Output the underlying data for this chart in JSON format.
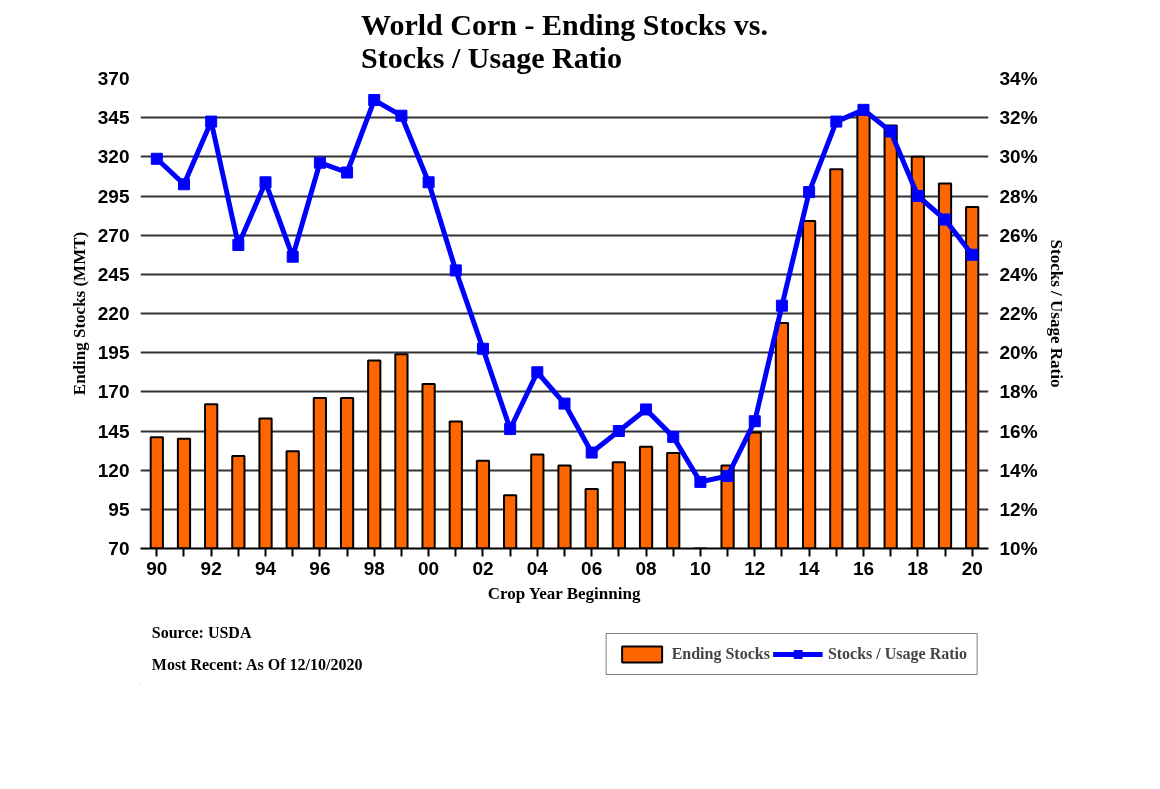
{
  "chart_data": {
    "type": "bar",
    "title": "World Corn - Ending Stocks vs. Stocks / Usage Ratio",
    "xlabel": "Crop Year Beginning",
    "ylabel": "Ending Stocks (MMT)",
    "y2label": "Stocks / Usage Ratio",
    "categories": [
      "90",
      null,
      "92",
      null,
      "94",
      null,
      "96",
      null,
      "98",
      null,
      "00",
      null,
      "02",
      null,
      "04",
      null,
      "06",
      null,
      "08",
      null,
      "10",
      null,
      "12",
      null,
      "14",
      null,
      "16",
      null,
      "18",
      null,
      "20"
    ],
    "series": [
      {
        "name": "Ending Stocks",
        "color": "#ff6600",
        "values": [
          141,
          140,
          162,
          129,
          153,
          132,
          166,
          166,
          190,
          194,
          175,
          151,
          126,
          104,
          130,
          123,
          108,
          125,
          135,
          131,
          null,
          123,
          144,
          214,
          279,
          312,
          347,
          340,
          320,
          303,
          288
        ]
      },
      {
        "name": "Stocks / Usage Ratio",
        "type": "line",
        "axis": "y2",
        "color": "#0000ff",
        "marker": "square",
        "values": [
          29.9,
          28.6,
          31.8,
          25.5,
          28.7,
          24.9,
          29.7,
          29.2,
          32.9,
          32.1,
          28.7,
          24.2,
          20.2,
          16.1,
          19.0,
          17.4,
          14.9,
          16.0,
          17.1,
          15.7,
          13.4,
          13.7,
          16.5,
          22.4,
          28.2,
          31.8,
          32.4,
          31.3,
          28.0,
          26.8,
          25.0
        ]
      }
    ],
    "ylim": [
      70,
      370
    ],
    "yticks": [
      70,
      95,
      120,
      145,
      170,
      195,
      220,
      245,
      270,
      295,
      320,
      345,
      370
    ],
    "y2lim": [
      10,
      34
    ],
    "y2ticks": [
      {
        "value": 10,
        "label": "10%"
      },
      {
        "value": 12,
        "label": "12%"
      },
      {
        "value": 14,
        "label": "14%"
      },
      {
        "value": 16,
        "label": "16%"
      },
      {
        "value": 18,
        "label": "18%"
      },
      {
        "value": 20,
        "label": "20%"
      },
      {
        "value": 22,
        "label": "22%"
      },
      {
        "value": 24,
        "label": "24%"
      },
      {
        "value": 26,
        "label": "26%"
      },
      {
        "value": 28,
        "label": "28%"
      },
      {
        "value": 30,
        "label": "30%"
      },
      {
        "value": 32,
        "label": "32%"
      },
      {
        "value": 34,
        "label": "34%"
      }
    ],
    "grid": "y",
    "legend": "bottom right",
    "annotations": [
      "Source: USDA",
      "Most Recent: As Of 12/10/2020"
    ]
  }
}
